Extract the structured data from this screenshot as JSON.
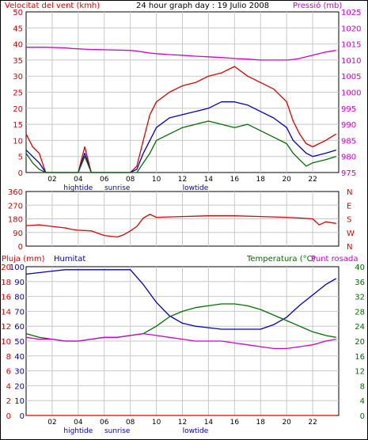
{
  "colors": {
    "wind_speed": "#e00000",
    "wind_avg": "#0000c0",
    "wind_low": "#007000",
    "pressure": "#d000d0",
    "direction": "#e00000",
    "rain": "#e00000",
    "humidity": "#0000c0",
    "temperature": "#007000",
    "dewpoint": "#d000d0",
    "grid": "#c8c8c8"
  },
  "header": {
    "left": "Velocitat del vent (kmh)",
    "center": "24 hour graph day : 19 Julio 2008",
    "right": "Pressió (mb)"
  },
  "x_axis": {
    "labels": [
      "02",
      "04",
      "06",
      "08",
      "10",
      "12",
      "14",
      "16",
      "18",
      "20",
      "22"
    ],
    "markers": [
      "hightide",
      "sunrise",
      "lowtide"
    ]
  },
  "chart_data": [
    {
      "type": "line",
      "title": "24 hour graph day : 19 Julio 2008",
      "ylabel_left": "Velocitat del vent (kmh)",
      "ylabel_right": "Pressió (mb)",
      "ylim_left": [
        0,
        50
      ],
      "ylim_right": [
        975,
        1025
      ],
      "left_ticks": [
        "0",
        "5",
        "10",
        "15",
        "20",
        "25",
        "30",
        "35",
        "40",
        "45",
        "50"
      ],
      "right_ticks": [
        "975",
        "980",
        "985",
        "990",
        "995",
        "1000",
        "1005",
        "1010",
        "1015",
        "1020",
        "1025"
      ],
      "x_hours": [
        0,
        0.5,
        1,
        1.5,
        3,
        3.5,
        4,
        4.5,
        5,
        8,
        8.5,
        9,
        9.5,
        10,
        11,
        12,
        13,
        14,
        15,
        16,
        17,
        18,
        19,
        20,
        20.5,
        21,
        21.5,
        22,
        23,
        23.8
      ],
      "series": [
        {
          "axis": "left",
          "values": [
            12,
            8,
            6,
            0,
            0,
            0,
            0,
            8,
            0,
            0,
            2,
            10,
            18,
            22,
            25,
            27,
            28,
            30,
            31,
            33,
            30,
            28,
            26,
            22,
            16,
            12,
            9,
            8,
            10,
            12
          ]
        },
        {
          "axis": "left",
          "values": [
            7,
            5,
            3,
            0,
            0,
            0,
            0,
            6,
            0,
            0,
            1,
            6,
            10,
            14,
            17,
            18,
            19,
            20,
            22,
            22,
            21,
            19,
            17,
            14,
            10,
            8,
            6,
            5,
            6,
            7
          ]
        },
        {
          "axis": "left",
          "values": [
            6,
            3,
            1,
            0,
            0,
            0,
            0,
            5,
            0,
            0,
            0,
            3,
            6,
            10,
            12,
            14,
            15,
            16,
            15,
            14,
            15,
            13,
            11,
            9,
            6,
            4,
            2,
            3,
            4,
            5
          ]
        },
        {
          "axis": "right",
          "values": [
            1014,
            1014,
            1014,
            1014,
            1013.8,
            1013.6,
            1013.5,
            1013.4,
            1013.3,
            1013,
            1012.8,
            1012.5,
            1012.2,
            1012,
            1011.7,
            1011.5,
            1011.2,
            1011,
            1010.8,
            1010.5,
            1010.3,
            1010,
            1010,
            1010,
            1010.2,
            1010.5,
            1011,
            1011.5,
            1012.5,
            1013
          ]
        }
      ]
    },
    {
      "type": "line",
      "ylim": [
        0,
        360
      ],
      "left_ticks": [
        "0",
        "90",
        "180",
        "270",
        "360"
      ],
      "right_ticks": [
        "N",
        "W",
        "S",
        "E",
        "N"
      ],
      "x_hours": [
        0,
        1,
        2,
        3,
        3.5,
        4,
        5,
        6,
        7,
        7.5,
        8,
        8.5,
        9,
        9.5,
        10,
        12,
        14,
        16,
        18,
        20,
        21,
        22,
        22.5,
        23,
        23.8
      ],
      "series": [
        {
          "values": [
            135,
            140,
            130,
            120,
            110,
            105,
            100,
            70,
            60,
            75,
            100,
            130,
            185,
            210,
            190,
            195,
            200,
            200,
            195,
            190,
            185,
            180,
            140,
            160,
            150
          ]
        }
      ]
    },
    {
      "type": "line",
      "ylabel_left_rain": "Pluja (mm)",
      "ylabel_left_hum": "Humitat",
      "ylabel_right_temp": "Temperatura (°C)",
      "ylabel_right_dew": "Punt rosada",
      "rain_ticks": [
        "0",
        "2",
        "4",
        "6",
        "8",
        "10",
        "12",
        "14",
        "16",
        "18",
        "20"
      ],
      "hum_ticks": [
        "0",
        "10",
        "20",
        "30",
        "40",
        "50",
        "60",
        "70",
        "80",
        "90",
        "100"
      ],
      "temp_ticks_a": [
        "0",
        "4",
        "8",
        "12",
        "16",
        "20",
        "24",
        "28",
        "32",
        "36",
        "40"
      ],
      "ylim_hum": [
        0,
        100
      ],
      "ylim_temp": [
        0,
        40
      ],
      "x_hours": [
        0,
        1,
        2,
        3,
        4,
        5,
        6,
        7,
        8,
        9,
        10,
        11,
        12,
        13,
        14,
        15,
        16,
        17,
        18,
        19,
        20,
        21,
        22,
        23,
        23.8
      ],
      "series": [
        {
          "name": "Humitat",
          "values": [
            95,
            96,
            97,
            98,
            98,
            98,
            98,
            98,
            98,
            88,
            76,
            67,
            62,
            60,
            59,
            58,
            58,
            58,
            58,
            61,
            66,
            74,
            81,
            88,
            92
          ]
        },
        {
          "name": "Temperatura (°C)",
          "values": [
            22,
            21,
            20.5,
            20,
            20,
            20.5,
            21,
            21,
            21.5,
            22,
            24,
            26.5,
            28,
            29,
            29.5,
            30,
            30,
            29.5,
            28.5,
            27,
            25.5,
            24,
            22.5,
            21.5,
            21
          ]
        },
        {
          "name": "Punt rosada",
          "values": [
            21,
            20.5,
            20.5,
            20,
            20,
            20.5,
            21,
            21,
            21.5,
            22,
            21.5,
            21,
            20.5,
            20,
            20,
            20,
            19.5,
            19,
            18.5,
            18,
            18,
            18.5,
            19,
            20,
            20.5
          ]
        },
        {
          "name": "Pluja (mm)",
          "values": [
            0,
            0,
            0,
            0,
            0,
            0,
            0,
            0,
            0,
            0,
            0,
            0,
            0,
            0,
            0,
            0,
            0,
            0,
            0,
            0,
            0,
            0,
            0,
            0,
            0
          ]
        }
      ]
    }
  ],
  "panel3": {
    "rain_label": "Pluja (mm)",
    "humidity_label": "Humitat",
    "temp_label": "Temperatura (°C)",
    "dew_label": "Punt rosada"
  }
}
